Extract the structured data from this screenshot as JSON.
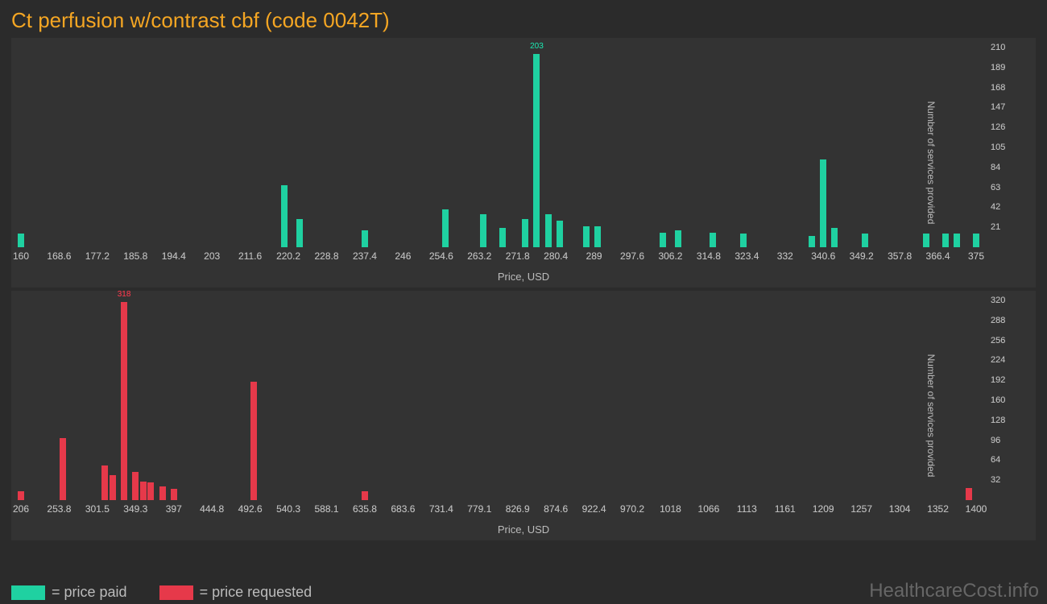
{
  "title": "Ct perfusion w/contrast cbf (code 0042T)",
  "watermark": "HealthcareCost.info",
  "colors": {
    "background": "#2b2b2b",
    "panel": "#333333",
    "title": "#f5a623",
    "axis_text": "#bbbbbb",
    "paid": "#1fd1a1",
    "requested": "#e6394a"
  },
  "legend": {
    "paid_label": "= price paid",
    "requested_label": "= price requested"
  },
  "axis_labels": {
    "x": "Price, USD",
    "y": "Number of services provided"
  },
  "chart_paid": {
    "type": "histogram",
    "color": "#1fd1a1",
    "x_ticks": [
      "160",
      "168.6",
      "177.2",
      "185.8",
      "194.4",
      "203",
      "211.6",
      "220.2",
      "228.8",
      "237.4",
      "246",
      "254.6",
      "263.2",
      "271.8",
      "280.4",
      "289",
      "297.6",
      "306.2",
      "314.8",
      "323.4",
      "332",
      "340.6",
      "349.2",
      "357.8",
      "366.4",
      "375"
    ],
    "y_ticks": [
      21,
      42,
      63,
      84,
      105,
      126,
      147,
      168,
      189,
      210
    ],
    "ymax": 210,
    "bars": [
      {
        "xfrac": 0.0,
        "value": 14
      },
      {
        "xfrac": 0.276,
        "value": 65
      },
      {
        "xfrac": 0.292,
        "value": 30
      },
      {
        "xfrac": 0.36,
        "value": 18
      },
      {
        "xfrac": 0.444,
        "value": 40
      },
      {
        "xfrac": 0.484,
        "value": 35
      },
      {
        "xfrac": 0.504,
        "value": 20
      },
      {
        "xfrac": 0.528,
        "value": 30
      },
      {
        "xfrac": 0.54,
        "value": 203,
        "label": "203"
      },
      {
        "xfrac": 0.552,
        "value": 35
      },
      {
        "xfrac": 0.564,
        "value": 28
      },
      {
        "xfrac": 0.592,
        "value": 22
      },
      {
        "xfrac": 0.604,
        "value": 22
      },
      {
        "xfrac": 0.672,
        "value": 15
      },
      {
        "xfrac": 0.688,
        "value": 18
      },
      {
        "xfrac": 0.724,
        "value": 15
      },
      {
        "xfrac": 0.756,
        "value": 14
      },
      {
        "xfrac": 0.828,
        "value": 12
      },
      {
        "xfrac": 0.84,
        "value": 92
      },
      {
        "xfrac": 0.852,
        "value": 20
      },
      {
        "xfrac": 0.884,
        "value": 14
      },
      {
        "xfrac": 0.948,
        "value": 14
      },
      {
        "xfrac": 0.968,
        "value": 14
      },
      {
        "xfrac": 0.98,
        "value": 14
      },
      {
        "xfrac": 1.0,
        "value": 14
      }
    ]
  },
  "chart_requested": {
    "type": "histogram",
    "color": "#e6394a",
    "x_ticks": [
      "206",
      "253.8",
      "301.5",
      "349.3",
      "397",
      "444.8",
      "492.6",
      "540.3",
      "588.1",
      "635.8",
      "683.6",
      "731.4",
      "779.1",
      "826.9",
      "874.6",
      "922.4",
      "970.2",
      "1018",
      "1066",
      "1113",
      "1161",
      "1209",
      "1257",
      "1304",
      "1352",
      "1400"
    ],
    "y_ticks": [
      32,
      64,
      96,
      128,
      160,
      192,
      224,
      256,
      288,
      320
    ],
    "ymax": 320,
    "bars": [
      {
        "xfrac": 0.0,
        "value": 14
      },
      {
        "xfrac": 0.044,
        "value": 100
      },
      {
        "xfrac": 0.088,
        "value": 55
      },
      {
        "xfrac": 0.096,
        "value": 40
      },
      {
        "xfrac": 0.108,
        "value": 318,
        "label": "318"
      },
      {
        "xfrac": 0.12,
        "value": 45
      },
      {
        "xfrac": 0.128,
        "value": 30
      },
      {
        "xfrac": 0.136,
        "value": 28
      },
      {
        "xfrac": 0.148,
        "value": 22
      },
      {
        "xfrac": 0.16,
        "value": 18
      },
      {
        "xfrac": 0.244,
        "value": 190
      },
      {
        "xfrac": 0.36,
        "value": 14
      },
      {
        "xfrac": 0.992,
        "value": 20
      }
    ]
  }
}
